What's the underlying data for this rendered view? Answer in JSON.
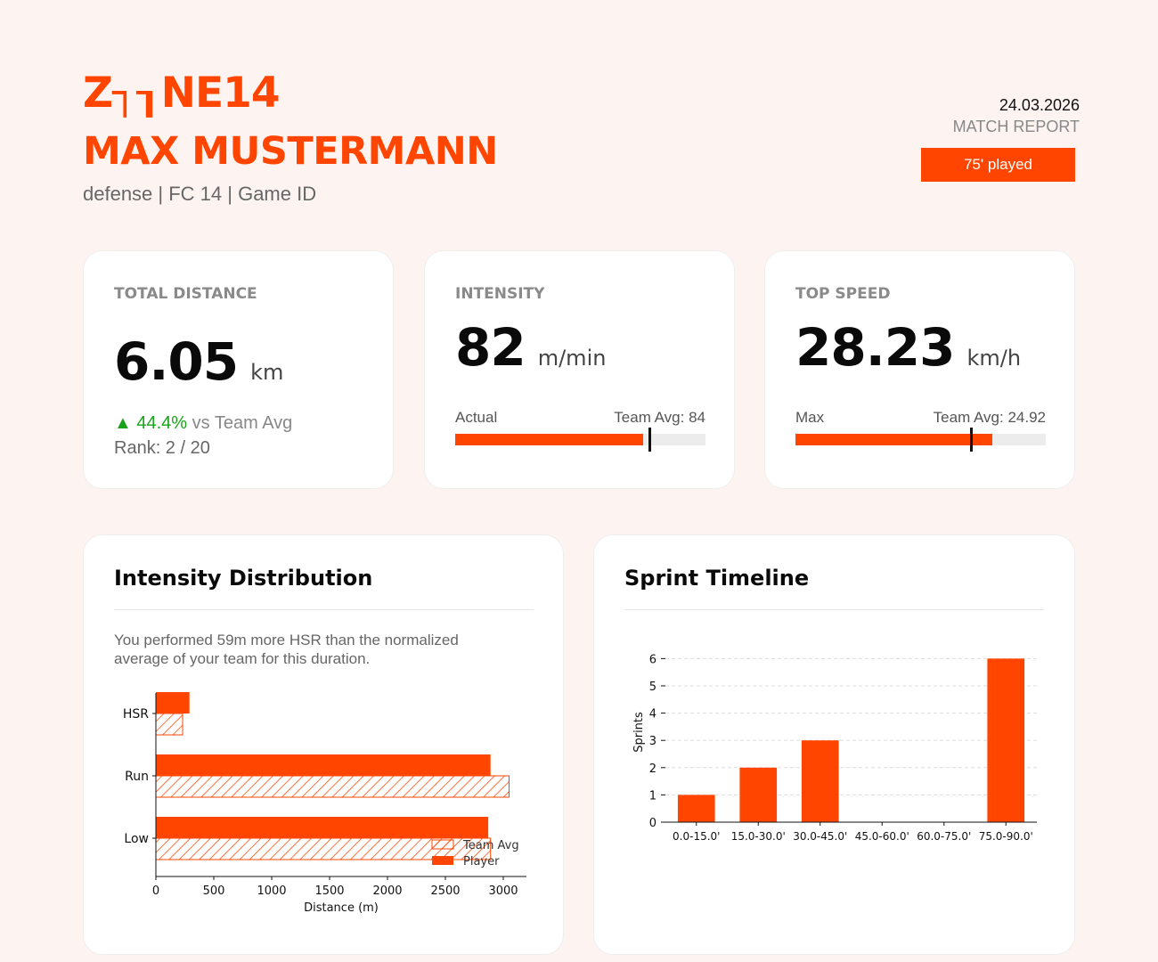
{
  "header": {
    "logo_text": "Z┐┒NE14",
    "player_name": "MAX MUSTERMANN",
    "subtitle": "defense | FC 14 | Game ID",
    "date": "24.03.2026",
    "report_type": "MATCH REPORT",
    "played_badge": "75' played",
    "accent_color": "#ff4500"
  },
  "kpis": {
    "total_distance": {
      "label": "TOTAL DISTANCE",
      "value": "6.05",
      "unit": "km",
      "delta_arrow": "▲",
      "delta_value": "44.4%",
      "delta_suffix": " vs Team Avg",
      "rank": "Rank: 2 / 20"
    },
    "intensity": {
      "label": "INTENSITY",
      "value": "82",
      "unit": "m/min",
      "bar_left_label": "Actual",
      "bar_right_label": "Team Avg: 84",
      "bar_fill_fraction": 0.75,
      "marker_fraction": 0.775
    },
    "top_speed": {
      "label": "TOP SPEED",
      "value": "28.23",
      "unit": "km/h",
      "bar_left_label": "Max",
      "bar_right_label": "Team Avg: 24.92",
      "bar_fill_fraction": 0.785,
      "marker_fraction": 0.7
    }
  },
  "intensity_distribution": {
    "title": "Intensity Distribution",
    "description": "You performed 59m more HSR than the normalized average of your team for this duration."
  },
  "sprint_timeline": {
    "title": "Sprint Timeline"
  },
  "chart_data": [
    {
      "type": "bar",
      "orientation": "horizontal",
      "categories": [
        "HSR",
        "Run",
        "Low"
      ],
      "series": [
        {
          "name": "Player",
          "values": [
            290,
            2890,
            2870
          ],
          "style": "solid",
          "color": "#ff4500"
        },
        {
          "name": "Team Avg",
          "values": [
            231,
            3050,
            2890
          ],
          "style": "hatched",
          "color": "#ff4500"
        }
      ],
      "xlabel": "Distance (m)",
      "xlim": [
        0,
        3200
      ],
      "xticks": [
        0,
        500,
        1000,
        1500,
        2000,
        2500,
        3000
      ],
      "legend": "bottom-right"
    },
    {
      "type": "bar",
      "categories": [
        "0.0-15.0'",
        "15.0-30.0'",
        "30.0-45.0'",
        "45.0-60.0'",
        "60.0-75.0'",
        "75.0-90.0'"
      ],
      "values": [
        1,
        2,
        3,
        0,
        0,
        6
      ],
      "ylabel": "Sprints",
      "ylim": [
        0,
        6.6
      ],
      "yticks": [
        0,
        1,
        2,
        3,
        4,
        5,
        6
      ],
      "grid": "horizontal-dashed",
      "color": "#ff4500"
    }
  ]
}
